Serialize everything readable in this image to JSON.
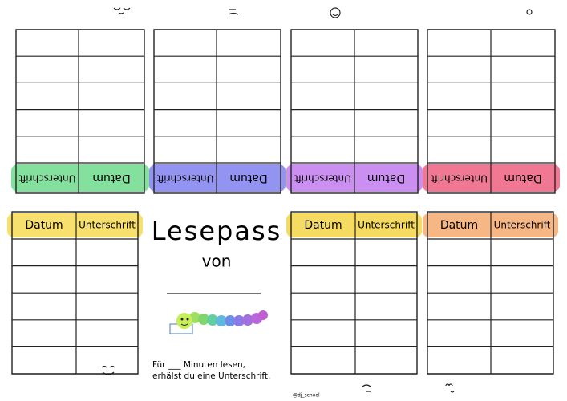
{
  "title": "Lesepass",
  "subtitle": "von",
  "instructions": [
    "Für ___ Minuten lesen,",
    "erhälst du eine Unterschrift."
  ],
  "credit": "@dj_school",
  "tables": [
    {
      "headers": [
        "Datum",
        "Unterschrift"
      ],
      "color": "#6fdc8c"
    },
    {
      "headers": [
        "Datum",
        "Unterschrift"
      ],
      "color": "#8080ee"
    },
    {
      "headers": [
        "Datum",
        "Unterschrift"
      ],
      "color": "#c27aee"
    },
    {
      "headers": [
        "Datum",
        "Unterschrift"
      ],
      "color": "#ee6080"
    },
    {
      "headers": [
        "Datum",
        "Unterschrift"
      ],
      "color": "#f7da55"
    },
    {
      "headers": [
        "Datum",
        "Unterschrift"
      ],
      "color": "#f5d548"
    },
    {
      "headers": [
        "Datum",
        "Unterschrift"
      ],
      "color": "#f6aa70"
    }
  ]
}
